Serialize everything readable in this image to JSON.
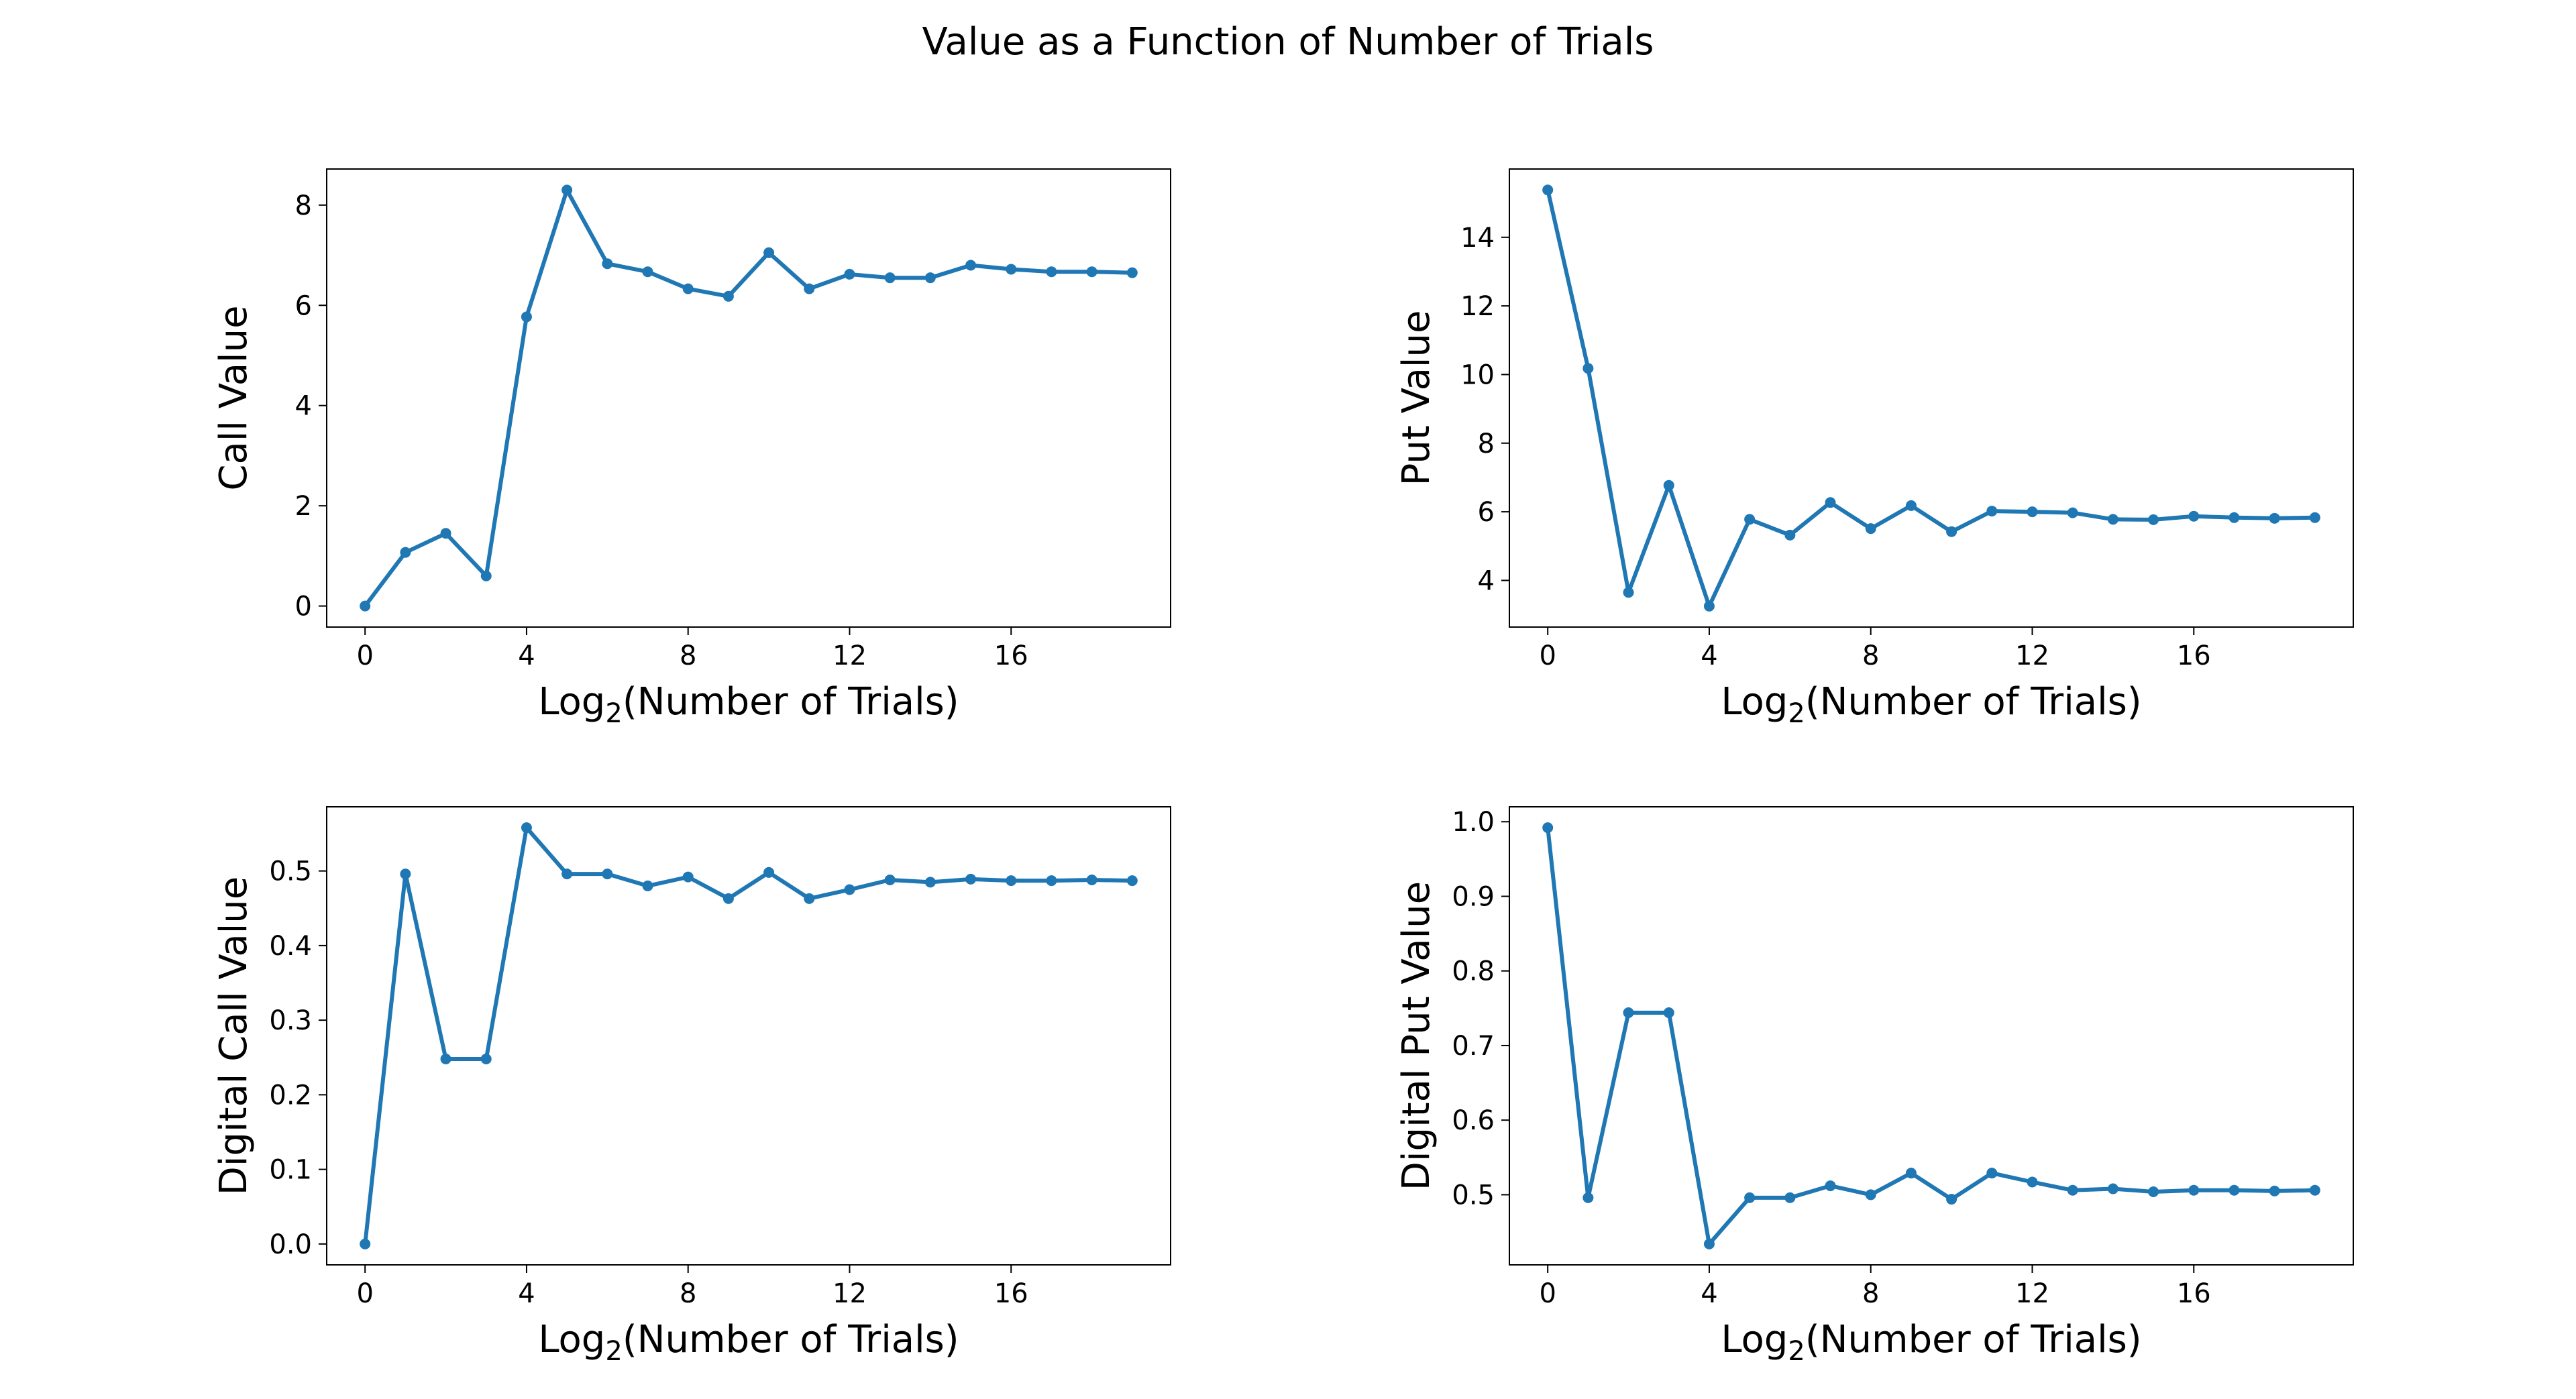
{
  "figure": {
    "title": "Value as a Function of Number of Trials",
    "line_color": "#1f77b4"
  },
  "chart_data": [
    {
      "type": "line",
      "id": "call",
      "xlabel_prefix": "Log",
      "xlabel_sub": "2",
      "xlabel_suffix": "(Number of Trials)",
      "ylabel": "Call Value",
      "x": [
        0,
        1,
        2,
        3,
        4,
        5,
        6,
        7,
        8,
        9,
        10,
        11,
        12,
        13,
        14,
        15,
        16,
        17,
        18,
        19
      ],
      "values": [
        0.0,
        1.07,
        1.45,
        0.6,
        5.77,
        8.3,
        6.83,
        6.67,
        6.33,
        6.18,
        7.05,
        6.33,
        6.62,
        6.55,
        6.55,
        6.8,
        6.72,
        6.67,
        6.67,
        6.65
      ],
      "xticks": [
        0,
        4,
        8,
        12,
        16
      ],
      "yticks": [
        0,
        2,
        4,
        6,
        8
      ],
      "xlim": [
        -0.95,
        19.95
      ],
      "ylim": [
        -0.42,
        8.72
      ]
    },
    {
      "type": "line",
      "id": "put",
      "xlabel_prefix": "Log",
      "xlabel_sub": "2",
      "xlabel_suffix": "(Number of Trials)",
      "ylabel": "Put Value",
      "x": [
        0,
        1,
        2,
        3,
        4,
        5,
        6,
        7,
        8,
        9,
        10,
        11,
        12,
        13,
        14,
        15,
        16,
        17,
        18,
        19
      ],
      "values": [
        15.38,
        10.18,
        3.65,
        6.77,
        3.25,
        5.78,
        5.32,
        6.27,
        5.51,
        6.18,
        5.42,
        6.02,
        6.0,
        5.97,
        5.78,
        5.77,
        5.87,
        5.83,
        5.81,
        5.83
      ],
      "xticks": [
        0,
        4,
        8,
        12,
        16
      ],
      "yticks": [
        4,
        6,
        8,
        10,
        12,
        14
      ],
      "xlim": [
        -0.95,
        19.95
      ],
      "ylim": [
        2.64,
        15.99
      ]
    },
    {
      "type": "line",
      "id": "digital-call",
      "xlabel_prefix": "Log",
      "xlabel_sub": "2",
      "xlabel_suffix": "(Number of Trials)",
      "ylabel": "Digital Call Value",
      "x": [
        0,
        1,
        2,
        3,
        4,
        5,
        6,
        7,
        8,
        9,
        10,
        11,
        12,
        13,
        14,
        15,
        16,
        17,
        18,
        19
      ],
      "values": [
        0.0,
        0.496,
        0.248,
        0.248,
        0.558,
        0.496,
        0.496,
        0.48,
        0.492,
        0.463,
        0.498,
        0.463,
        0.475,
        0.488,
        0.485,
        0.489,
        0.487,
        0.487,
        0.488,
        0.487
      ],
      "xticks": [
        0,
        4,
        8,
        12,
        16
      ],
      "yticks": [
        0.0,
        0.1,
        0.2,
        0.3,
        0.4,
        0.5
      ],
      "ytick_labels": [
        "0.0",
        "0.1",
        "0.2",
        "0.3",
        "0.4",
        "0.5"
      ],
      "xlim": [
        -0.95,
        19.95
      ],
      "ylim": [
        -0.028,
        0.586
      ]
    },
    {
      "type": "line",
      "id": "digital-put",
      "xlabel_prefix": "Log",
      "xlabel_sub": "2",
      "xlabel_suffix": "(Number of Trials)",
      "ylabel": "Digital Put Value",
      "x": [
        0,
        1,
        2,
        3,
        4,
        5,
        6,
        7,
        8,
        9,
        10,
        11,
        12,
        13,
        14,
        15,
        16,
        17,
        18,
        19
      ],
      "values": [
        0.992,
        0.496,
        0.744,
        0.744,
        0.434,
        0.496,
        0.496,
        0.512,
        0.5,
        0.529,
        0.494,
        0.529,
        0.517,
        0.506,
        0.508,
        0.504,
        0.506,
        0.506,
        0.505,
        0.506
      ],
      "xticks": [
        0,
        4,
        8,
        12,
        16
      ],
      "yticks": [
        0.5,
        0.6,
        0.7,
        0.8,
        0.9,
        1.0
      ],
      "ytick_labels": [
        "0.5",
        "0.6",
        "0.7",
        "0.8",
        "0.9",
        "1.0"
      ],
      "xlim": [
        -0.95,
        19.95
      ],
      "ylim": [
        0.406,
        1.02
      ]
    }
  ]
}
